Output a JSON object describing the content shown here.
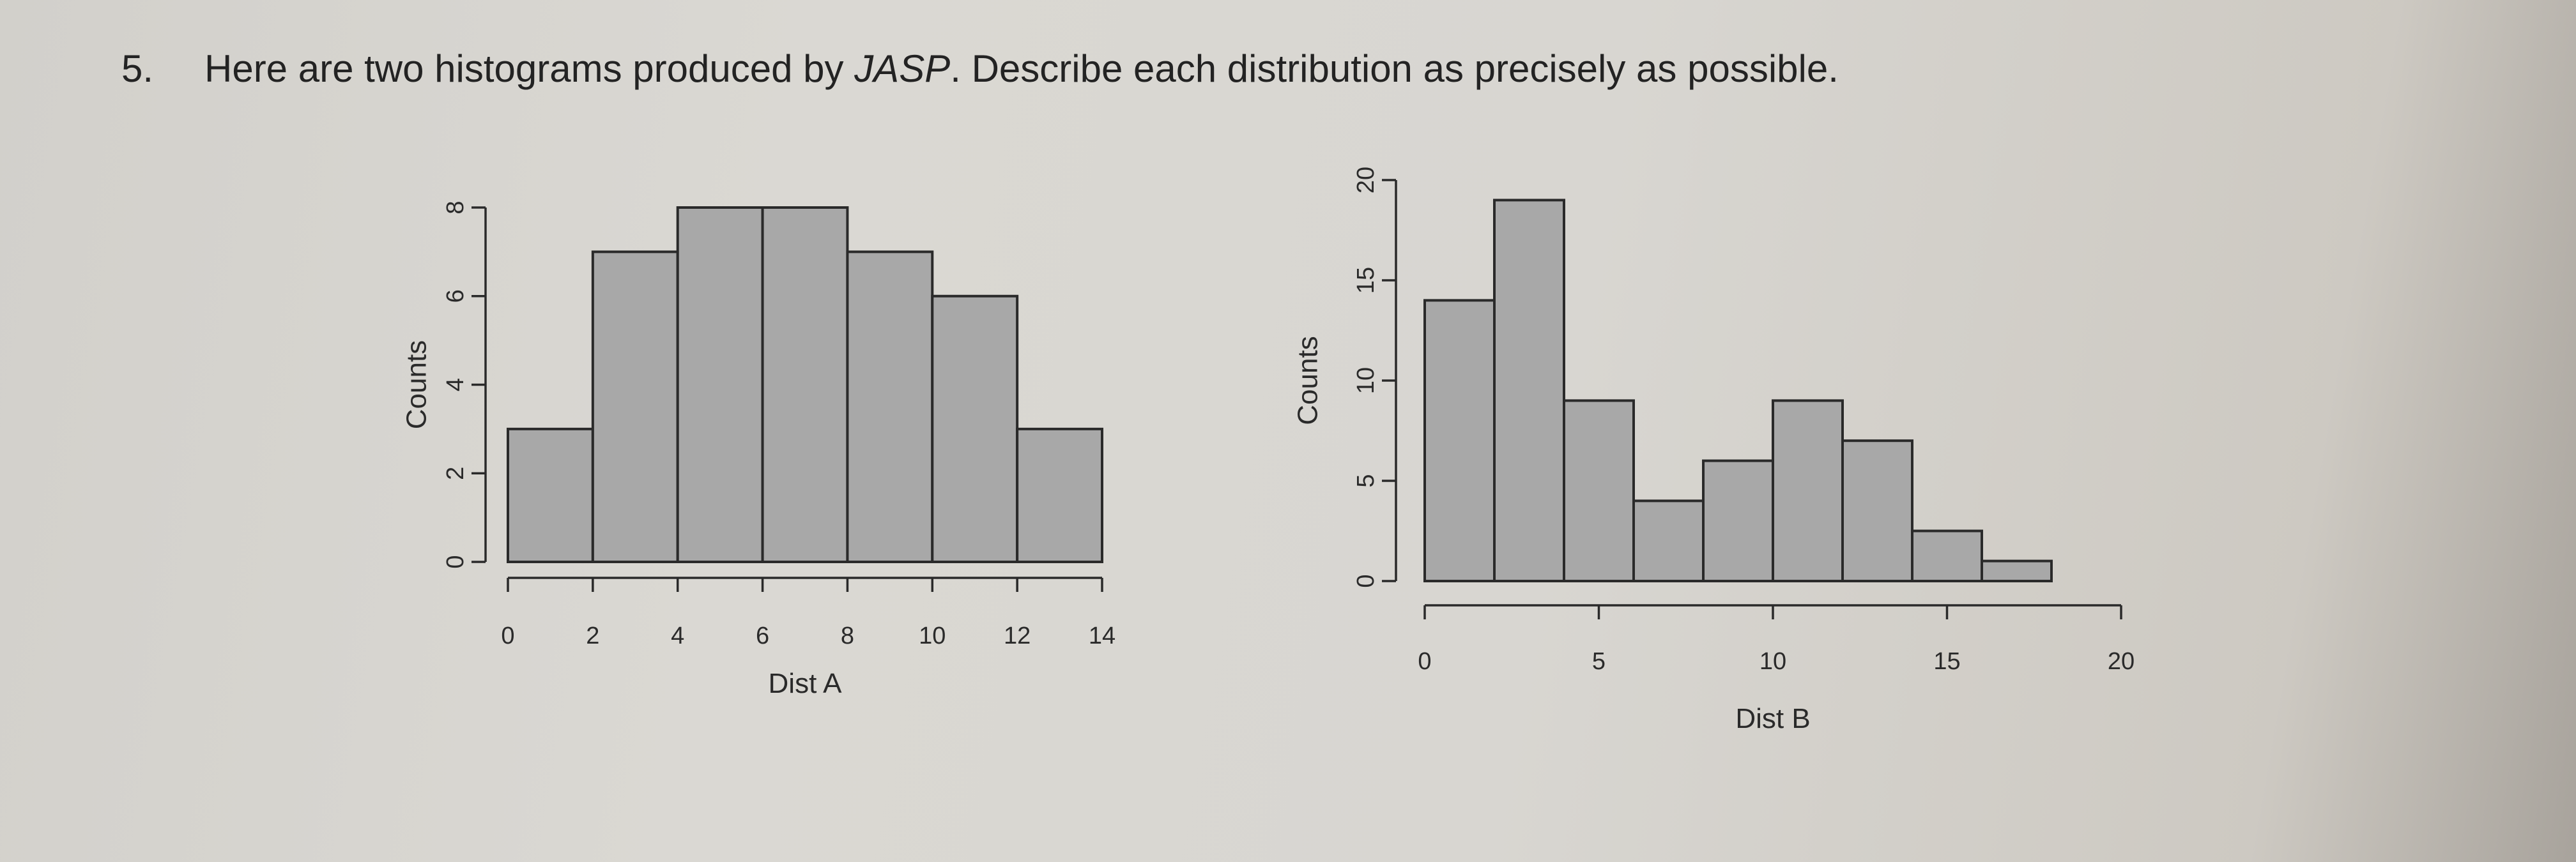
{
  "question": {
    "number": "5.",
    "text_before": "Here are two histograms produced by ",
    "software": "JASP",
    "text_after": ". Describe each distribution as precisely as possible."
  },
  "chart_data": [
    {
      "type": "bar",
      "title": "",
      "xlabel": "Dist A",
      "ylabel": "Counts",
      "bin_edges": [
        0,
        2,
        4,
        6,
        8,
        10,
        12,
        14
      ],
      "values": [
        3,
        7,
        8,
        8,
        7,
        6,
        3
      ],
      "xticks": [
        0,
        2,
        4,
        6,
        8,
        10,
        12,
        14
      ],
      "xtick_labels": [
        "0",
        "2",
        "4",
        "6",
        "8",
        "10",
        "12",
        "14"
      ],
      "yticks": [
        0,
        2,
        4,
        6,
        8
      ],
      "ytick_labels": [
        "0",
        "2",
        "4",
        "6",
        "8"
      ],
      "xlim": [
        0,
        14
      ],
      "ylim": [
        0,
        8
      ],
      "grid": false
    },
    {
      "type": "bar",
      "title": "",
      "xlabel": "Dist B",
      "ylabel": "Counts",
      "bin_edges": [
        0,
        2,
        4,
        6,
        8,
        10,
        12,
        14,
        16,
        18
      ],
      "values": [
        14,
        19,
        9,
        4,
        6,
        9,
        7,
        2.5,
        1
      ],
      "xticks": [
        0,
        5,
        10,
        15,
        20
      ],
      "xtick_labels": [
        "0",
        "5",
        "10",
        "15",
        "20"
      ],
      "yticks": [
        0,
        5,
        10,
        15,
        20
      ],
      "ytick_labels": [
        "0",
        "5",
        "10",
        "15",
        "20"
      ],
      "xlim": [
        0,
        20
      ],
      "ylim": [
        0,
        20
      ],
      "grid": false
    }
  ]
}
